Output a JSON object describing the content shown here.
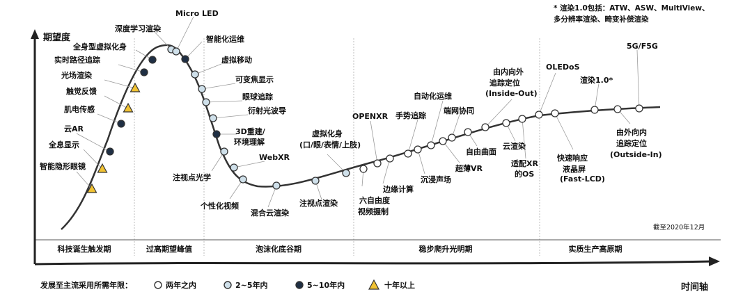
{
  "y_axis_label": "期望度",
  "x_axis_label": "时间轴",
  "note_lines": [
    "* 渲染1.0包括：ATW、ASW、MultiView、",
    "多分辨率渲染、畸变补偿渲染"
  ],
  "date_note": "截至2020年12月",
  "phases": [
    "科技诞生触发期",
    "过高期望峰值",
    "泡沫化底谷期",
    "稳步爬升光明期",
    "实质生产高原期"
  ],
  "legend": {
    "title": "发展至主流采用所需年限：",
    "items": [
      {
        "marker": "white",
        "label": "两年之内"
      },
      {
        "marker": "light",
        "label": "2~5年内"
      },
      {
        "marker": "dark",
        "label": "5~10年内"
      },
      {
        "marker": "triangle",
        "label": "十年以上"
      }
    ]
  },
  "technologies": [
    {
      "name": "智能隐形眼镜",
      "marker": "triangle"
    },
    {
      "name": "全息显示",
      "marker": "triangle"
    },
    {
      "name": "云AR",
      "marker": "dark"
    },
    {
      "name": "肌电传感",
      "marker": "dark"
    },
    {
      "name": "触觉反馈",
      "marker": "triangle"
    },
    {
      "name": "光场渲染",
      "marker": "triangle"
    },
    {
      "name": "实时路径追踪",
      "marker": "dark"
    },
    {
      "name": "全身型虚拟化身",
      "marker": "dark"
    },
    {
      "name": "深度学习渲染",
      "marker": "light"
    },
    {
      "name": "Micro LED",
      "marker": "light"
    },
    {
      "name": "智能化运维",
      "marker": "dark"
    },
    {
      "name": "虚拟移动",
      "marker": "light"
    },
    {
      "name": "可变焦显示",
      "marker": "light"
    },
    {
      "name": "眼球追踪",
      "marker": "light"
    },
    {
      "name": "衍射光波导",
      "marker": "light"
    },
    {
      "name": "3D重建/",
      "marker": "dark"
    },
    {
      "name": "环境理解",
      "marker": "none"
    },
    {
      "name": "注视点光学",
      "marker": "light"
    },
    {
      "name": "WebXR",
      "marker": "light"
    },
    {
      "name": "个性化视频",
      "marker": "light"
    },
    {
      "name": "混合云渲染",
      "marker": "light"
    },
    {
      "name": "注视点渲染",
      "marker": "light"
    },
    {
      "name": "虚拟化身",
      "marker": "light"
    },
    {
      "name": "(口/眼/表情/上肢)",
      "marker": "none"
    },
    {
      "name": "六自由度",
      "marker": "white"
    },
    {
      "name": "视频摄制",
      "marker": "none"
    },
    {
      "name": "OPENXR",
      "marker": "white"
    },
    {
      "name": "边缘计算",
      "marker": "white"
    },
    {
      "name": "手势追踪",
      "marker": "white"
    },
    {
      "name": "沉浸声场",
      "marker": "white"
    },
    {
      "name": "自动化运维",
      "marker": "white"
    },
    {
      "name": "超薄VR",
      "marker": "white"
    },
    {
      "name": "端网协同",
      "marker": "white"
    },
    {
      "name": "自由曲面",
      "marker": "white"
    },
    {
      "name": "由内向外",
      "marker": "white"
    },
    {
      "name": "追踪定位",
      "marker": "none"
    },
    {
      "name": "(Inside-Out)",
      "marker": "none"
    },
    {
      "name": "云渲染",
      "marker": "white"
    },
    {
      "name": "适配XR",
      "marker": "white"
    },
    {
      "name": "的OS",
      "marker": "none"
    },
    {
      "name": "OLEDoS",
      "marker": "white"
    },
    {
      "name": "快速响应",
      "marker": "white"
    },
    {
      "name": "液晶屏",
      "marker": "none"
    },
    {
      "name": "(Fast-LCD)",
      "marker": "none"
    },
    {
      "name": "渲染1.0*",
      "marker": "white"
    },
    {
      "name": "由外向内",
      "marker": "white"
    },
    {
      "name": "追踪定位",
      "marker": "none"
    },
    {
      "name": "(Outside-In)",
      "marker": "none"
    },
    {
      "name": "5G/F5G",
      "marker": "white"
    }
  ],
  "colors": {
    "white": "#ffffff",
    "light": "#cfe0ea",
    "dark": "#1f2f44",
    "triangle": "#f1c232",
    "line": "#333333",
    "divider": "#bbbbbb"
  }
}
